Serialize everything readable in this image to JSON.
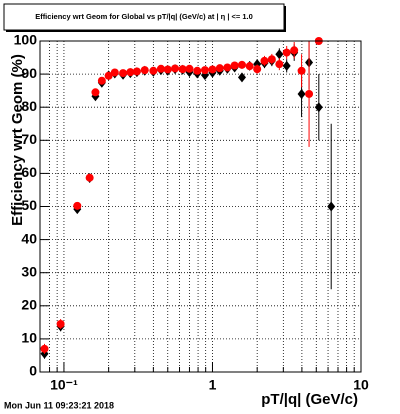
{
  "chart_data": {
    "type": "scatter",
    "title": "Efficiency wrt Geom for Global vs pT/|q| (GeV/c) at | η | <= 1.0",
    "x_label": "pT/|q| (GeV/c)",
    "y_label": "Efficiency wrt Geom (%)",
    "footer": "Mon Jun 11 09:23:21 2018",
    "x": [
      0.074,
      0.095,
      0.123,
      0.149,
      0.163,
      0.18,
      0.2,
      0.22,
      0.25,
      0.28,
      0.31,
      0.35,
      0.4,
      0.45,
      0.5,
      0.56,
      0.63,
      0.7,
      0.79,
      0.89,
      1.0,
      1.12,
      1.26,
      1.41,
      1.58,
      1.78,
      2.0,
      2.24,
      2.51,
      2.82,
      3.16,
      3.55,
      3.98,
      4.47,
      5.2,
      6.3
    ],
    "series": [
      {
        "color": "#000000",
        "marker": "diamond",
        "values": [
          5.5,
          13.8,
          49.2,
          58.6,
          83.3,
          87.4,
          89.6,
          90.2,
          89.8,
          90.3,
          90.6,
          91.0,
          90.7,
          91.2,
          91.0,
          91.5,
          91.3,
          90.6,
          90.2,
          89.7,
          90.4,
          91.0,
          91.6,
          92.0,
          89.0,
          92.5,
          93.0,
          93.3,
          94.0,
          96.0,
          92.5,
          96.5,
          84.0,
          93.5,
          80.0,
          50.0
        ],
        "errors": [
          1.5,
          1.5,
          1.0,
          1.0,
          0.8,
          0.7,
          0.6,
          0.6,
          0.6,
          0.6,
          0.6,
          0.6,
          0.6,
          0.6,
          0.6,
          0.7,
          0.7,
          0.7,
          0.8,
          0.8,
          0.8,
          0.9,
          1.0,
          1.0,
          1.2,
          1.2,
          1.4,
          1.5,
          1.6,
          1.8,
          2.0,
          2.5,
          7,
          8,
          10,
          25
        ]
      },
      {
        "color": "#ff0000",
        "marker": "circle",
        "values": [
          7.0,
          14.5,
          50.2,
          58.7,
          84.5,
          88.0,
          89.5,
          90.5,
          90.3,
          90.6,
          90.8,
          91.2,
          91.0,
          91.6,
          91.4,
          91.7,
          91.5,
          91.6,
          91.0,
          91.2,
          91.4,
          91.8,
          92.0,
          92.6,
          92.8,
          92.4,
          91.5,
          94.0,
          94.5,
          93.0,
          96.5,
          97.2,
          91.0,
          84.0,
          100.0,
          null
        ],
        "errors": [
          1.5,
          1.5,
          1.0,
          1.0,
          0.8,
          0.7,
          0.6,
          0.6,
          0.6,
          0.6,
          0.6,
          0.6,
          0.6,
          0.6,
          0.6,
          0.7,
          0.7,
          0.7,
          0.8,
          0.8,
          0.8,
          0.9,
          1.0,
          1.0,
          1.2,
          1.2,
          1.4,
          1.5,
          1.6,
          1.8,
          2.0,
          2.5,
          5,
          16,
          0,
          null
        ]
      }
    ],
    "xlog": true,
    "xlim": [
      0.069,
      10
    ],
    "xticks": [
      {
        "value": 0.1,
        "label": "10⁻¹"
      },
      1,
      10
    ],
    "xminorticks": [
      0.08,
      0.09,
      0.2,
      0.3,
      0.4,
      0.5,
      0.6,
      0.7,
      0.8,
      0.9,
      2,
      3,
      4,
      5,
      6,
      7,
      8,
      9
    ],
    "ylim": [
      0,
      100
    ],
    "yticks": [
      0,
      10,
      20,
      30,
      40,
      50,
      60,
      70,
      80,
      90,
      100
    ],
    "grid": true
  }
}
